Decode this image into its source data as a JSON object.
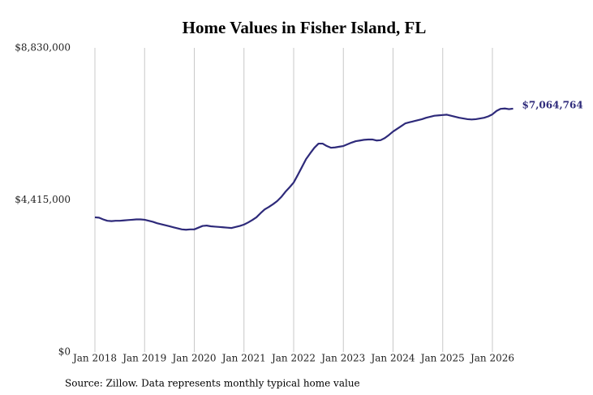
{
  "chart_data": {
    "type": "line",
    "title": "Home Values in Fisher Island, FL",
    "source": "Source: Zillow. Data represents monthly typical home value",
    "x": [
      "2018-01",
      "2018-02",
      "2018-03",
      "2018-04",
      "2018-05",
      "2018-06",
      "2018-07",
      "2018-08",
      "2018-09",
      "2018-10",
      "2018-11",
      "2018-12",
      "2019-01",
      "2019-02",
      "2019-03",
      "2019-04",
      "2019-05",
      "2019-06",
      "2019-07",
      "2019-08",
      "2019-09",
      "2019-10",
      "2019-11",
      "2019-12",
      "2020-01",
      "2020-02",
      "2020-03",
      "2020-04",
      "2020-05",
      "2020-06",
      "2020-07",
      "2020-08",
      "2020-09",
      "2020-10",
      "2020-11",
      "2020-12",
      "2021-01",
      "2021-02",
      "2021-03",
      "2021-04",
      "2021-05",
      "2021-06",
      "2021-07",
      "2021-08",
      "2021-09",
      "2021-10",
      "2021-11",
      "2021-12",
      "2022-01",
      "2022-02",
      "2022-03",
      "2022-04",
      "2022-05",
      "2022-06",
      "2022-07",
      "2022-08",
      "2022-09",
      "2022-10",
      "2022-11",
      "2022-12",
      "2023-01",
      "2023-02",
      "2023-03",
      "2023-04",
      "2023-05",
      "2023-06",
      "2023-07",
      "2023-08",
      "2023-09",
      "2023-10",
      "2023-11",
      "2023-12",
      "2024-01",
      "2024-02",
      "2024-03",
      "2024-04",
      "2024-05",
      "2024-06",
      "2024-07",
      "2024-08",
      "2024-09",
      "2024-10",
      "2024-11",
      "2024-12",
      "2025-01",
      "2025-02",
      "2025-03",
      "2025-04",
      "2025-05",
      "2025-06",
      "2025-07",
      "2025-08",
      "2025-09",
      "2025-10",
      "2025-11",
      "2025-12",
      "2026-01",
      "2026-02",
      "2026-03",
      "2026-04",
      "2026-05",
      "2026-06"
    ],
    "series": [
      {
        "name": "Fisher Island, FL",
        "color": "#2e2a7a",
        "values": [
          3910000,
          3900000,
          3850000,
          3810000,
          3800000,
          3810000,
          3810000,
          3820000,
          3830000,
          3840000,
          3850000,
          3850000,
          3840000,
          3810000,
          3780000,
          3740000,
          3710000,
          3680000,
          3650000,
          3620000,
          3590000,
          3560000,
          3550000,
          3560000,
          3560000,
          3610000,
          3660000,
          3670000,
          3650000,
          3640000,
          3630000,
          3620000,
          3610000,
          3600000,
          3630000,
          3660000,
          3700000,
          3760000,
          3830000,
          3910000,
          4030000,
          4140000,
          4210000,
          4290000,
          4380000,
          4500000,
          4650000,
          4780000,
          4920000,
          5140000,
          5370000,
          5600000,
          5770000,
          5930000,
          6050000,
          6050000,
          5980000,
          5930000,
          5940000,
          5960000,
          5980000,
          6030000,
          6080000,
          6120000,
          6140000,
          6160000,
          6170000,
          6170000,
          6140000,
          6150000,
          6210000,
          6300000,
          6400000,
          6480000,
          6560000,
          6640000,
          6670000,
          6700000,
          6730000,
          6760000,
          6800000,
          6830000,
          6860000,
          6870000,
          6880000,
          6890000,
          6860000,
          6830000,
          6800000,
          6780000,
          6760000,
          6750000,
          6760000,
          6780000,
          6800000,
          6840000,
          6900000,
          7000000,
          7060000,
          7070000,
          7050000,
          7064764
        ],
        "value_labels": [
          null,
          null,
          null,
          null,
          null,
          null,
          null,
          null,
          null,
          null,
          null,
          null,
          null,
          null,
          null,
          null,
          null,
          null,
          null,
          null,
          null,
          null,
          null,
          null,
          null,
          null,
          null,
          null,
          null,
          null,
          null,
          null,
          null,
          null,
          null,
          null,
          null,
          null,
          null,
          null,
          null,
          null,
          null,
          null,
          null,
          null,
          null,
          null,
          null,
          null,
          null,
          null,
          null,
          null,
          null,
          null,
          null,
          null,
          null,
          null,
          null,
          null,
          null,
          null,
          null,
          null,
          null,
          null,
          null,
          null,
          null,
          null,
          null,
          null,
          null,
          null,
          null,
          null,
          null,
          null,
          null,
          null,
          null,
          null,
          null,
          null,
          null,
          null,
          null,
          null,
          null,
          null,
          null,
          null,
          null,
          null,
          null,
          null,
          null,
          null,
          null,
          "$7,064,764"
        ]
      }
    ],
    "ylim": [
      0,
      8830000
    ],
    "yticks": [
      {
        "value": 0,
        "label": "$0"
      },
      {
        "value": 4415000,
        "label": "$4,415,000"
      },
      {
        "value": 8830000,
        "label": "$8,830,000"
      }
    ],
    "xticks": [
      {
        "value": "2018-01",
        "label": "Jan 2018"
      },
      {
        "value": "2019-01",
        "label": "Jan 2019"
      },
      {
        "value": "2020-01",
        "label": "Jan 2020"
      },
      {
        "value": "2021-01",
        "label": "Jan 2021"
      },
      {
        "value": "2022-01",
        "label": "Jan 2022"
      },
      {
        "value": "2023-01",
        "label": "Jan 2023"
      },
      {
        "value": "2024-01",
        "label": "Jan 2024"
      },
      {
        "value": "2025-01",
        "label": "Jan 2025"
      },
      {
        "value": "2026-01",
        "label": "Jan 2026"
      }
    ],
    "grid": "x"
  }
}
